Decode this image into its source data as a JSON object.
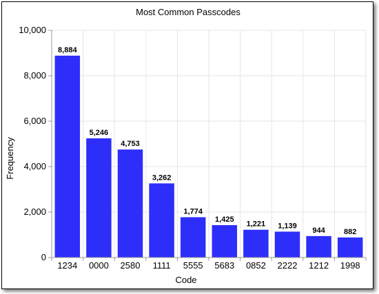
{
  "chart_data": {
    "type": "bar",
    "title": "Most Common Passcodes",
    "xlabel": "Code",
    "ylabel": "Frequency",
    "categories": [
      "1234",
      "0000",
      "2580",
      "1111",
      "5555",
      "5683",
      "0852",
      "2222",
      "1212",
      "1998"
    ],
    "values": [
      8884,
      5246,
      4753,
      3262,
      1774,
      1425,
      1221,
      1139,
      944,
      882
    ],
    "value_labels": [
      "8,884",
      "5,246",
      "4,753",
      "3,262",
      "1,774",
      "1,425",
      "1,221",
      "1,139",
      "944",
      "882"
    ],
    "ylim": [
      0,
      10000
    ],
    "yticks": [
      0,
      2000,
      4000,
      6000,
      8000,
      10000
    ],
    "ytick_labels": [
      "0",
      "2,000",
      "4,000",
      "6,000",
      "8,000",
      "10,000"
    ],
    "grid": true,
    "legend": "none",
    "bar_color": "#2e2efb"
  }
}
